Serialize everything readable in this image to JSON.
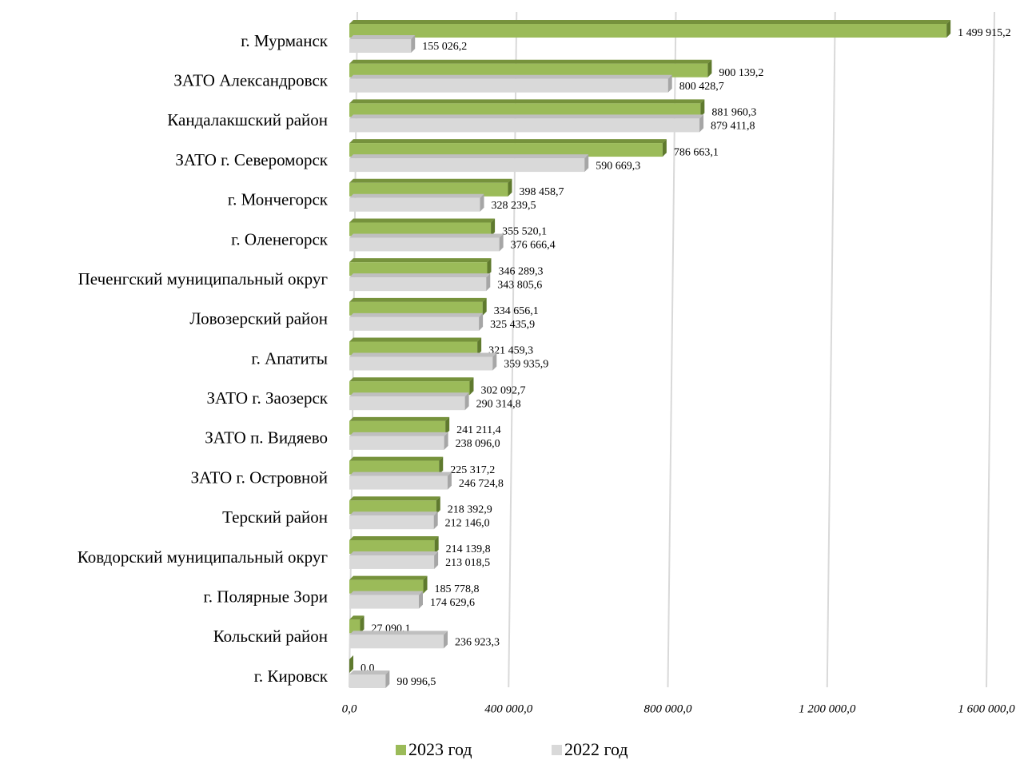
{
  "chart_data": {
    "type": "bar",
    "orientation": "horizontal",
    "categories": [
      "г. Мурманск",
      "ЗАТО Александровск",
      "Кандалакшский район",
      "ЗАТО г. Североморск",
      "г. Мончегорск",
      "г. Оленегорск",
      "Печенгский муниципальный округ",
      "Ловозерский район",
      "г. Апатиты",
      "ЗАТО г. Заозерск",
      "ЗАТО п. Видяево",
      "ЗАТО г. Островной",
      "Терский район",
      "Ковдорский муниципальный округ",
      "г. Полярные Зори",
      "Кольский район",
      "г. Кировск"
    ],
    "series": [
      {
        "name": "2023 год",
        "color": "#9bbb59",
        "values": [
          1499915.2,
          900139.2,
          881960.3,
          786663.1,
          398458.7,
          355520.1,
          346289.3,
          334656.1,
          321459.3,
          302092.7,
          241211.4,
          225317.2,
          218392.9,
          214139.8,
          185778.8,
          27090.1,
          0.0
        ],
        "value_labels": [
          "1 499 915,2",
          "900 139,2",
          "881 960,3",
          "786 663,1",
          "398 458,7",
          "355 520,1",
          "346 289,3",
          "334 656,1",
          "321 459,3",
          "302 092,7",
          "241 211,4",
          "225 317,2",
          "218 392,9",
          "214 139,8",
          "185 778,8",
          "27 090,1",
          "0,0"
        ]
      },
      {
        "name": "2022 год",
        "color": "#d9d9d9",
        "values": [
          155026.2,
          800428.7,
          879411.8,
          590669.3,
          328239.5,
          376666.4,
          343805.6,
          325435.9,
          359935.9,
          290314.8,
          238096.0,
          246724.8,
          212146.0,
          213018.5,
          174629.6,
          236923.3,
          90996.5
        ],
        "value_labels": [
          "155 026,2",
          "800 428,7",
          "879 411,8",
          "590 669,3",
          "328 239,5",
          "376 666,4",
          "343 805,6",
          "325 435,9",
          "359 935,9",
          "290 314,8",
          "238 096,0",
          "246 724,8",
          "212 146,0",
          "213 018,5",
          "174 629,6",
          "236 923,3",
          "90 996,5"
        ]
      }
    ],
    "xlim": [
      0,
      1600000
    ],
    "xticks": [
      {
        "value": 0,
        "label": "0,0"
      },
      {
        "value": 400000,
        "label": "400 000,0"
      },
      {
        "value": 800000,
        "label": "800 000,0"
      },
      {
        "value": 1200000,
        "label": "1 200 000,0"
      },
      {
        "value": 1600000,
        "label": "1 600 000,0"
      }
    ],
    "grid": true,
    "legend": "bottom"
  }
}
